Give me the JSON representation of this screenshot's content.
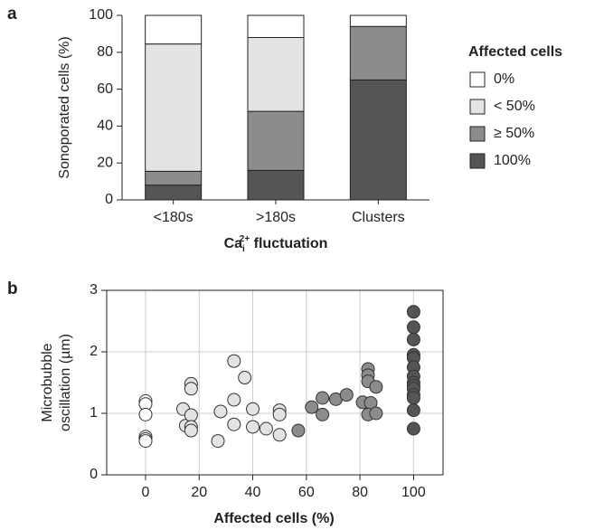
{
  "chart_data": [
    {
      "type": "stacked_bar",
      "panel": "a",
      "y_label": "Sonoporated cells (%)",
      "x_label": {
        "base": "Ca",
        "sub": "i",
        "sup": "2+",
        "rest": " fluctuation"
      },
      "categories": [
        "<180s",
        ">180s",
        "Clusters"
      ],
      "legend_title": "Affected cells",
      "series": [
        {
          "name": "0%",
          "color": "#ffffff",
          "values": [
            15.5,
            12,
            6
          ]
        },
        {
          "name": "< 50%",
          "color": "#e3e3e3",
          "values": [
            69,
            40,
            0
          ]
        },
        {
          "name": "≥ 50%",
          "color": "#8c8c8c",
          "values": [
            7.5,
            32,
            29
          ]
        },
        {
          "name": "100%",
          "color": "#555555",
          "values": [
            8,
            16,
            65
          ]
        }
      ],
      "ylim": [
        0,
        100
      ],
      "yticks": [
        0,
        20,
        40,
        60,
        80,
        100
      ]
    },
    {
      "type": "scatter",
      "panel": "b",
      "y_label": [
        "Microbubble",
        "oscillation (µm)"
      ],
      "x_label": "Affected cells (%)",
      "series": [
        {
          "color": "#ffffff",
          "x": [
            0,
            0,
            0,
            0,
            0,
            0
          ],
          "values": [
            1.2,
            1.15,
            0.98,
            0.62,
            0.58,
            0.55
          ]
        },
        {
          "color": "#e3e3e3",
          "x": [
            14,
            15,
            17,
            17,
            17,
            17,
            17,
            27,
            28,
            33,
            33,
            33,
            37,
            40,
            40,
            45,
            50,
            50,
            50
          ],
          "values": [
            1.07,
            0.8,
            1.48,
            1.4,
            0.97,
            0.78,
            0.72,
            0.55,
            1.03,
            1.85,
            1.22,
            0.82,
            1.58,
            1.07,
            0.78,
            0.75,
            1.05,
            0.98,
            0.65
          ]
        },
        {
          "color": "#8c8c8c",
          "x": [
            57,
            62,
            66,
            66,
            71,
            75,
            81,
            83,
            83,
            83,
            84,
            83,
            86,
            86
          ],
          "values": [
            0.72,
            1.1,
            1.25,
            0.98,
            1.23,
            1.3,
            1.18,
            1.72,
            1.62,
            1.52,
            1.17,
            0.98,
            1.43,
            1.0
          ]
        },
        {
          "color": "#555555",
          "x": [
            100,
            100,
            100,
            100,
            100,
            100,
            100,
            100,
            100,
            100,
            100,
            100,
            100,
            100
          ],
          "values": [
            2.65,
            2.4,
            2.2,
            1.95,
            1.9,
            1.75,
            1.6,
            1.5,
            1.45,
            1.4,
            1.3,
            1.25,
            1.05,
            0.75
          ]
        }
      ],
      "xlim": [
        -14.5,
        111
      ],
      "xticks": [
        0,
        20,
        40,
        60,
        80,
        100
      ],
      "ylim": [
        0,
        3
      ],
      "yticks": [
        0,
        1,
        2,
        3
      ],
      "grid": true
    }
  ]
}
